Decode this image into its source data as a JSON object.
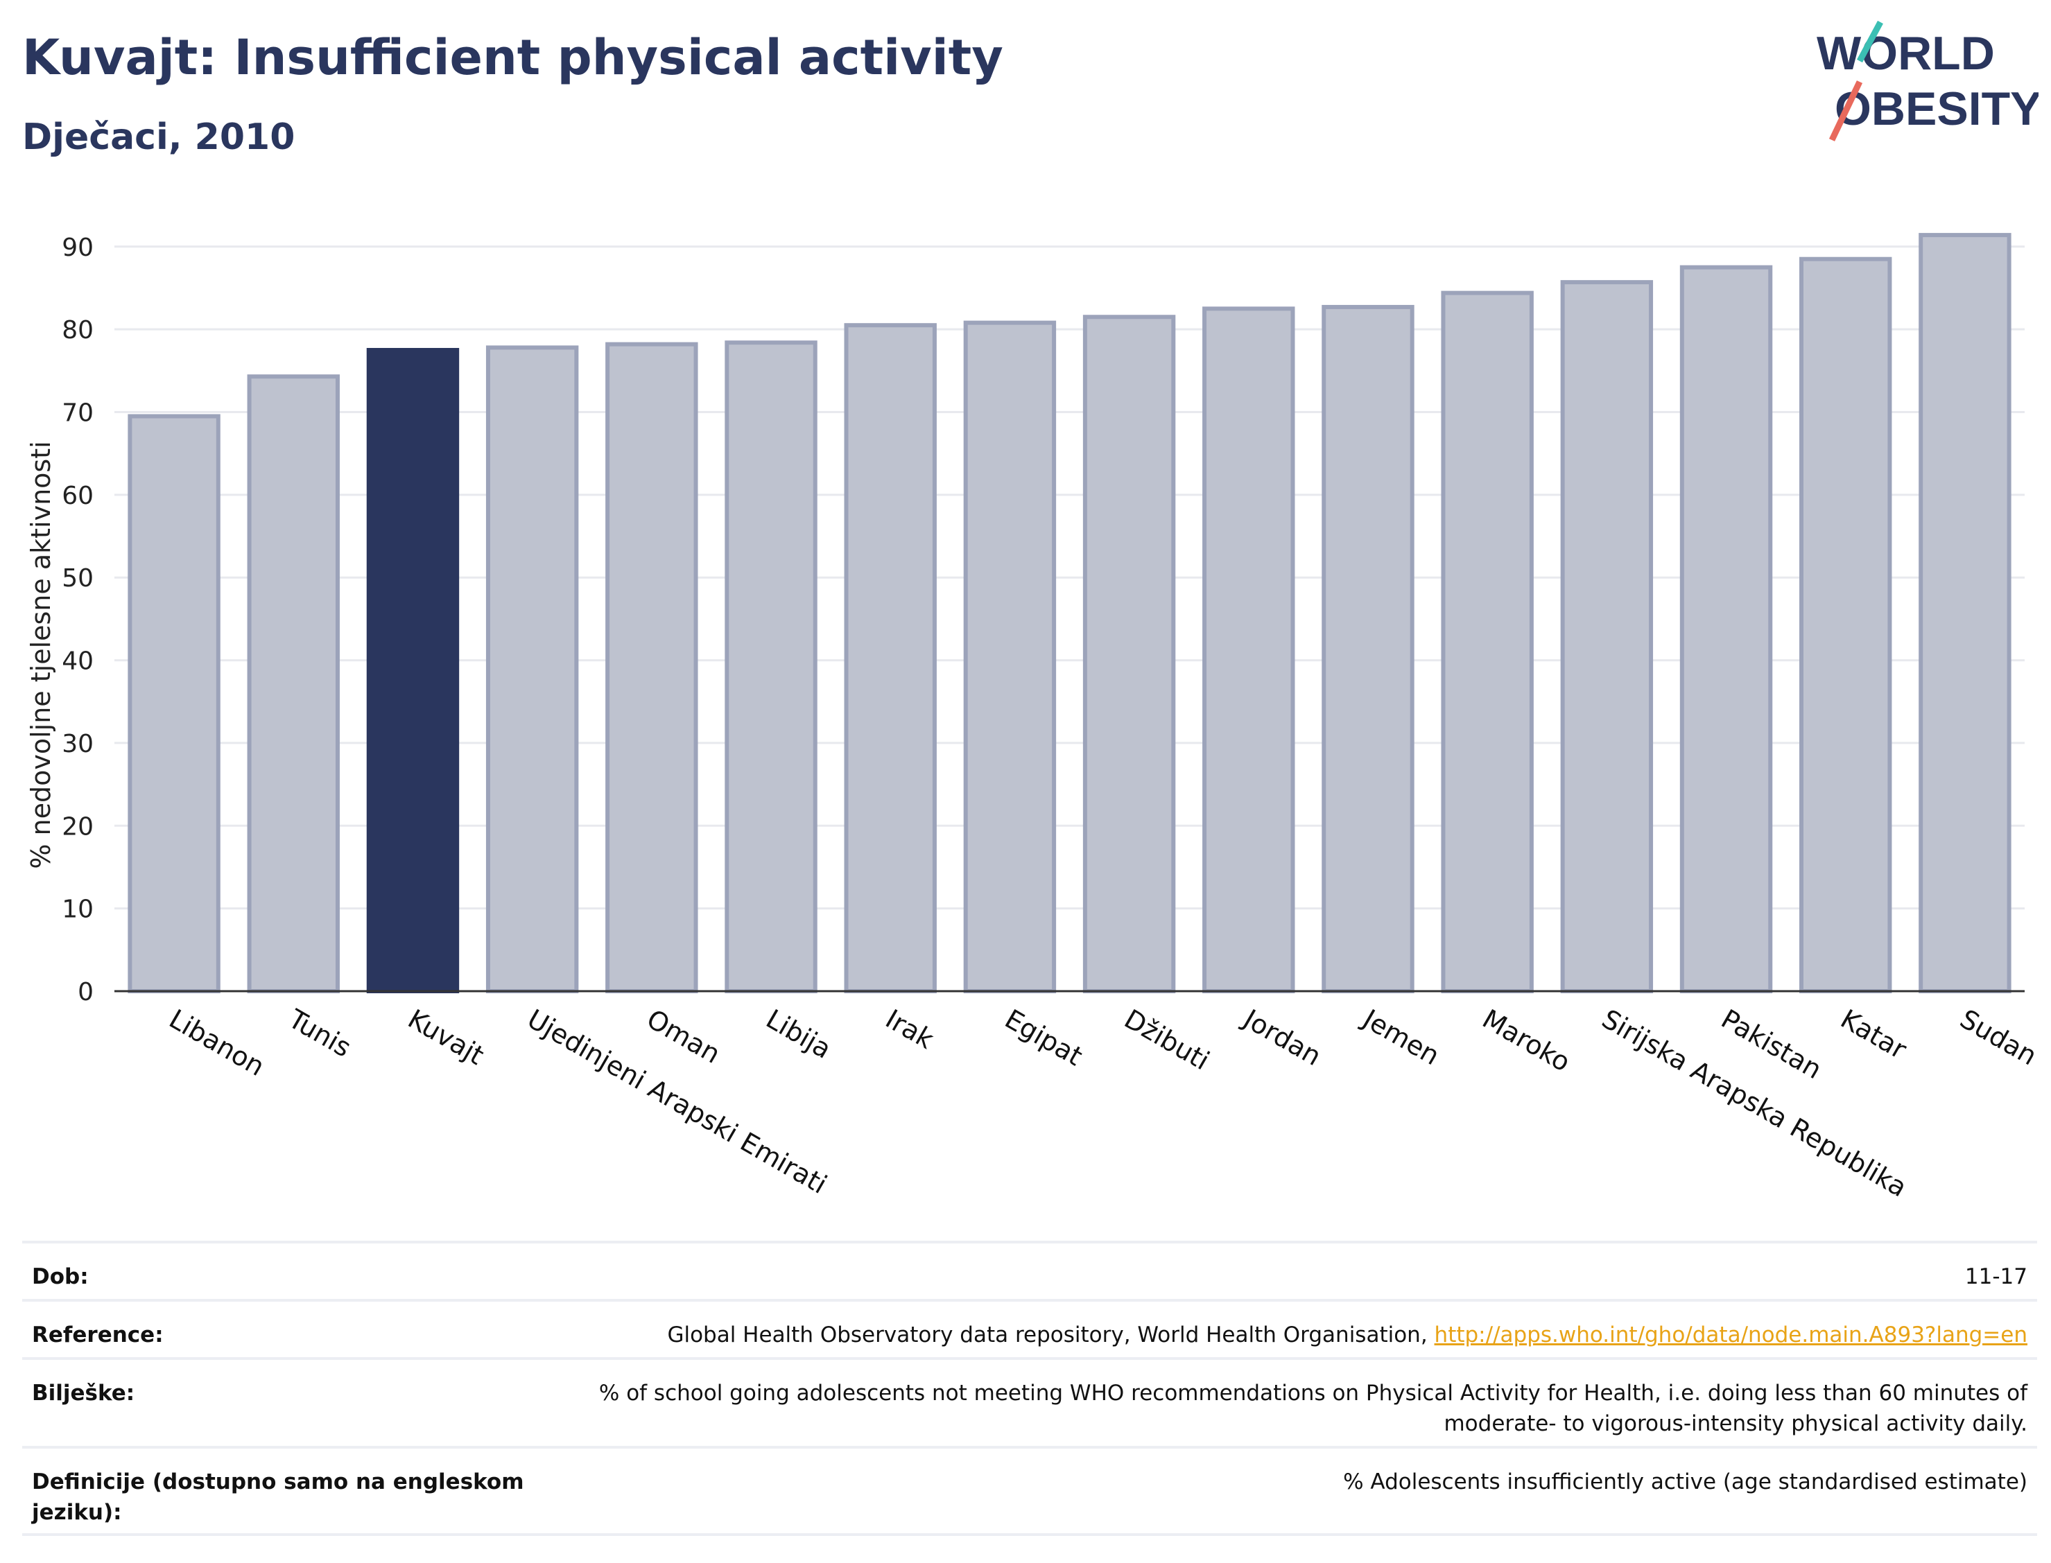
{
  "header": {
    "title": "Kuvajt: Insufficient physical activity",
    "subtitle": "Dječaci, 2010",
    "logo_line1": "WORLD",
    "logo_line2": "OBESITY"
  },
  "chart_data": {
    "type": "bar",
    "ylabel": "% nedovoljne tjelesne aktivnosti",
    "ylim": [
      0,
      93
    ],
    "yticks": [
      0,
      10,
      20,
      30,
      40,
      50,
      60,
      70,
      80,
      90
    ],
    "grid": true,
    "categories": [
      "Libanon",
      "Tunis",
      "Kuvajt",
      "Ujedinjeni Arapski Emirati",
      "Oman",
      "Libija",
      "Irak",
      "Egipat",
      "Džibuti",
      "Jordan",
      "Jemen",
      "Maroko",
      "Sirijska Arapska Republika",
      "Pakistan",
      "Katar",
      "Sudan"
    ],
    "values": [
      69.5,
      74.3,
      77.5,
      77.8,
      78.2,
      78.4,
      80.5,
      80.8,
      81.5,
      82.5,
      82.7,
      84.4,
      85.7,
      87.5,
      88.5,
      91.4
    ],
    "highlight": "Kuvajt",
    "colors": {
      "highlight": "#2a365e",
      "bar": "#bec2cf",
      "bar_edge": "#9ca3ba"
    }
  },
  "info": {
    "rows": [
      {
        "label": "Dob:",
        "value": "11-17"
      },
      {
        "label": "Reference:",
        "value": "Global Health Observatory data repository, World Health Organisation, ",
        "link": "http://apps.who.int/gho/data/node.main.A893?lang=en"
      },
      {
        "label": "Bilješke:",
        "value": "% of school going adolescents not meeting WHO recommendations on Physical Activity for Health, i.e. doing less than 60 minutes of moderate- to vigorous-intensity physical activity daily."
      },
      {
        "label": "Definicije (dostupno samo na engleskom jeziku):",
        "value": "% Adolescents insufficiently active (age standardised estimate)"
      }
    ]
  }
}
